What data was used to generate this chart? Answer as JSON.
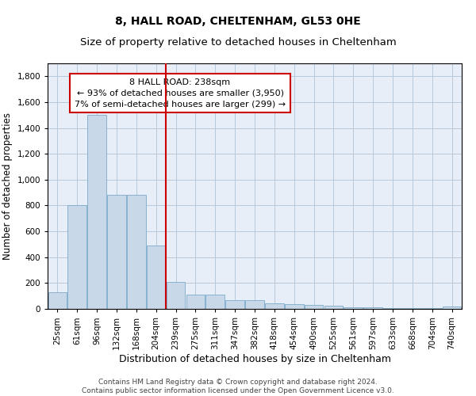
{
  "title": "8, HALL ROAD, CHELTENHAM, GL53 0HE",
  "subtitle": "Size of property relative to detached houses in Cheltenham",
  "xlabel": "Distribution of detached houses by size in Cheltenham",
  "ylabel": "Number of detached properties",
  "categories": [
    "25sqm",
    "61sqm",
    "96sqm",
    "132sqm",
    "168sqm",
    "204sqm",
    "239sqm",
    "275sqm",
    "311sqm",
    "347sqm",
    "382sqm",
    "418sqm",
    "454sqm",
    "490sqm",
    "525sqm",
    "561sqm",
    "597sqm",
    "633sqm",
    "668sqm",
    "704sqm",
    "740sqm"
  ],
  "values": [
    130,
    800,
    1500,
    880,
    880,
    490,
    210,
    110,
    110,
    70,
    70,
    40,
    35,
    30,
    25,
    10,
    10,
    5,
    5,
    5,
    20
  ],
  "bar_color": "#c8d8e8",
  "bar_edge_color": "#7aaac8",
  "vline_index": 6,
  "vline_color": "#cc0000",
  "annotation_line1": "8 HALL ROAD: 238sqm",
  "annotation_line2": "← 93% of detached houses are smaller (3,950)",
  "annotation_line3": "7% of semi-detached houses are larger (299) →",
  "annotation_box_color": "white",
  "annotation_box_edge_color": "#cc0000",
  "ylim": [
    0,
    1900
  ],
  "yticks": [
    0,
    200,
    400,
    600,
    800,
    1000,
    1200,
    1400,
    1600,
    1800
  ],
  "grid_color": "#b8c8dc",
  "bg_color": "#e8eef8",
  "footer": "Contains HM Land Registry data © Crown copyright and database right 2024.\nContains public sector information licensed under the Open Government Licence v3.0.",
  "title_fontsize": 10,
  "subtitle_fontsize": 9.5,
  "xlabel_fontsize": 9,
  "ylabel_fontsize": 8.5,
  "tick_fontsize": 7.5,
  "annotation_fontsize": 8,
  "footer_fontsize": 6.5
}
